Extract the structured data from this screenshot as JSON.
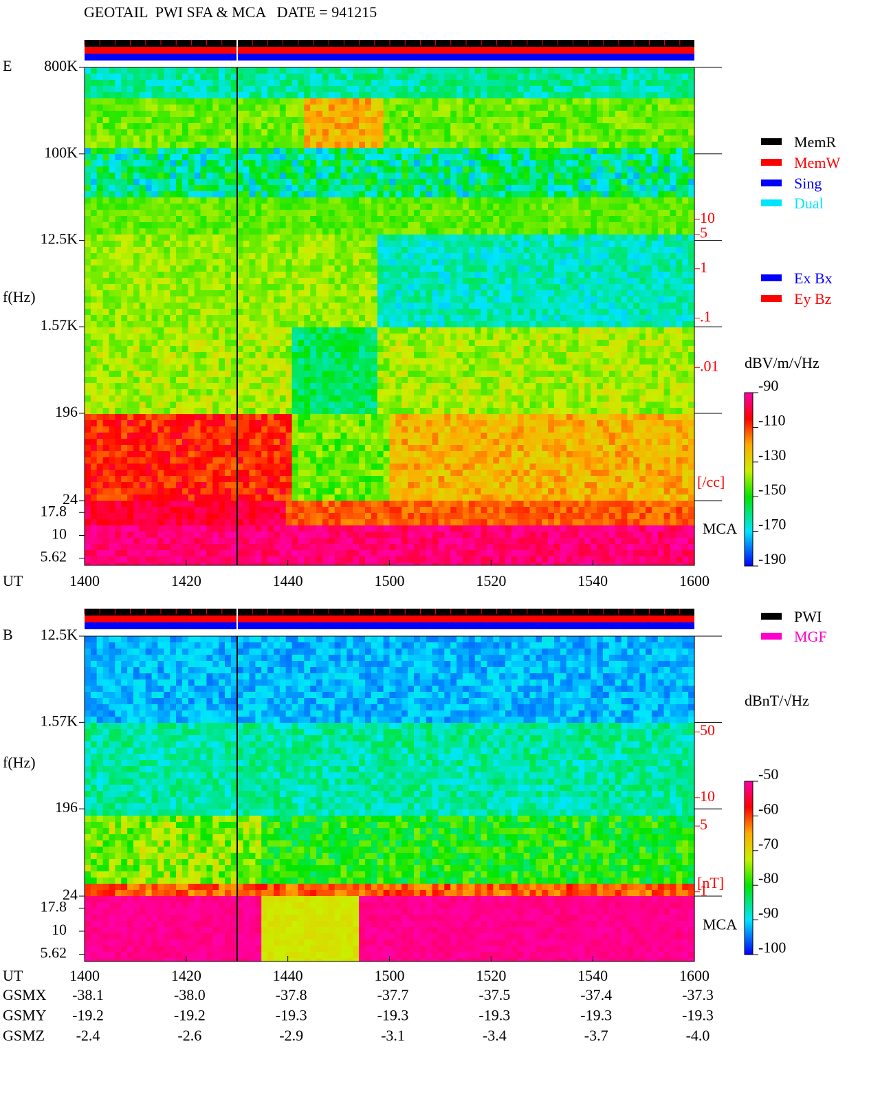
{
  "title": "GEOTAIL  PWI SFA & MCA   DATE = 941215",
  "chart_data": [
    {
      "type": "spectrogram",
      "panel": "E",
      "ylabel": "f(Hz)",
      "xlabel": "UT",
      "xlim": [
        0,
        120
      ],
      "xticks": [
        {
          "value": 0,
          "label": "1400"
        },
        {
          "value": 20,
          "label": "1420"
        },
        {
          "value": 40,
          "label": "1440"
        },
        {
          "value": 60,
          "label": "1500"
        },
        {
          "value": 80,
          "label": "1520"
        },
        {
          "value": 100,
          "label": "1540"
        },
        {
          "value": 120,
          "label": "1600"
        }
      ],
      "log_y": true,
      "ylim": [
        24,
        800000
      ],
      "yticks": [
        {
          "value": 800000,
          "label": "800K"
        },
        {
          "value": 100000,
          "label": "100K"
        },
        {
          "value": 12500,
          "label": "12.5K"
        },
        {
          "value": 1570,
          "label": "1.57K"
        },
        196,
        24
      ],
      "mca_label": "MCA",
      "mca_lim": [
        4.7,
        24
      ],
      "mca_ticks": [
        17.8,
        10,
        5.62
      ],
      "y2lim": [
        2e-05,
        12000
      ],
      "y2ticks": [
        10,
        5,
        1,
        {
          "value": 0.1,
          "label": ".1"
        },
        {
          "value": 0.01,
          "label": ".01"
        }
      ],
      "y2label": "[/cc]",
      "y2color": "#ff0000",
      "legend": [
        {
          "name": "MemR",
          "color": "#000000"
        },
        {
          "name": "MemW",
          "color": "#ff0000"
        },
        {
          "name": "Sing",
          "color": "#0000ff"
        },
        {
          "name": "Dual",
          "color": "#00e5ff"
        }
      ],
      "legend2": [
        {
          "name": "Ex Bx",
          "color": "#0000ff"
        },
        {
          "name": "Ey Bz",
          "color": "#ff0000"
        }
      ],
      "colorbar": {
        "label": "dBV/m/√Hz",
        "lim": [
          -190,
          -90
        ],
        "ticks": [
          -90,
          -110,
          -130,
          -150,
          -170,
          -190
        ]
      }
    },
    {
      "type": "spectrogram",
      "panel": "B",
      "ylabel": "f(Hz)",
      "xlabel": "UT",
      "xlim": [
        0,
        120
      ],
      "xticks": [
        {
          "value": 0,
          "label": "1400"
        },
        {
          "value": 20,
          "label": "1420"
        },
        {
          "value": 40,
          "label": "1440"
        },
        {
          "value": 60,
          "label": "1500"
        },
        {
          "value": 80,
          "label": "1520"
        },
        {
          "value": 100,
          "label": "1540"
        },
        {
          "value": 120,
          "label": "1600"
        }
      ],
      "log_y": true,
      "ylim": [
        24,
        12500
      ],
      "yticks": [
        {
          "value": 12500,
          "label": "12.5K"
        },
        {
          "value": 1570,
          "label": "1.57K"
        },
        196,
        24
      ],
      "mca_label": "MCA",
      "mca_lim": [
        4.7,
        24
      ],
      "mca_ticks": [
        17.8,
        10,
        5.62
      ],
      "y2lim": [
        0.9,
        520
      ],
      "y2ticks": [
        50,
        10,
        5,
        1
      ],
      "y2label": "[nT]",
      "y2color": "#ff0000",
      "legend": [
        {
          "name": "PWI",
          "color": "#000000"
        },
        {
          "name": "MGF",
          "color": "#ff00cc"
        }
      ],
      "colorbar": {
        "label": "dBnT/√Hz",
        "lim": [
          -100,
          -50
        ],
        "ticks": [
          -50,
          -60,
          -70,
          -80,
          -90,
          -100
        ]
      }
    }
  ],
  "orbit": {
    "rows": [
      {
        "label": "GSMX",
        "values": [
          "-38.1",
          "-38.0",
          "-37.8",
          "-37.7",
          "-37.5",
          "-37.4",
          "-37.3"
        ]
      },
      {
        "label": "GSMY",
        "values": [
          "-19.2",
          "-19.2",
          "-19.3",
          "-19.3",
          "-19.3",
          "-19.3",
          "-19.3"
        ]
      },
      {
        "label": "GSMZ",
        "values": [
          "-2.4",
          "-2.6",
          "-2.9",
          "-3.1",
          "-3.4",
          "-3.7",
          "-4.0"
        ]
      }
    ]
  }
}
